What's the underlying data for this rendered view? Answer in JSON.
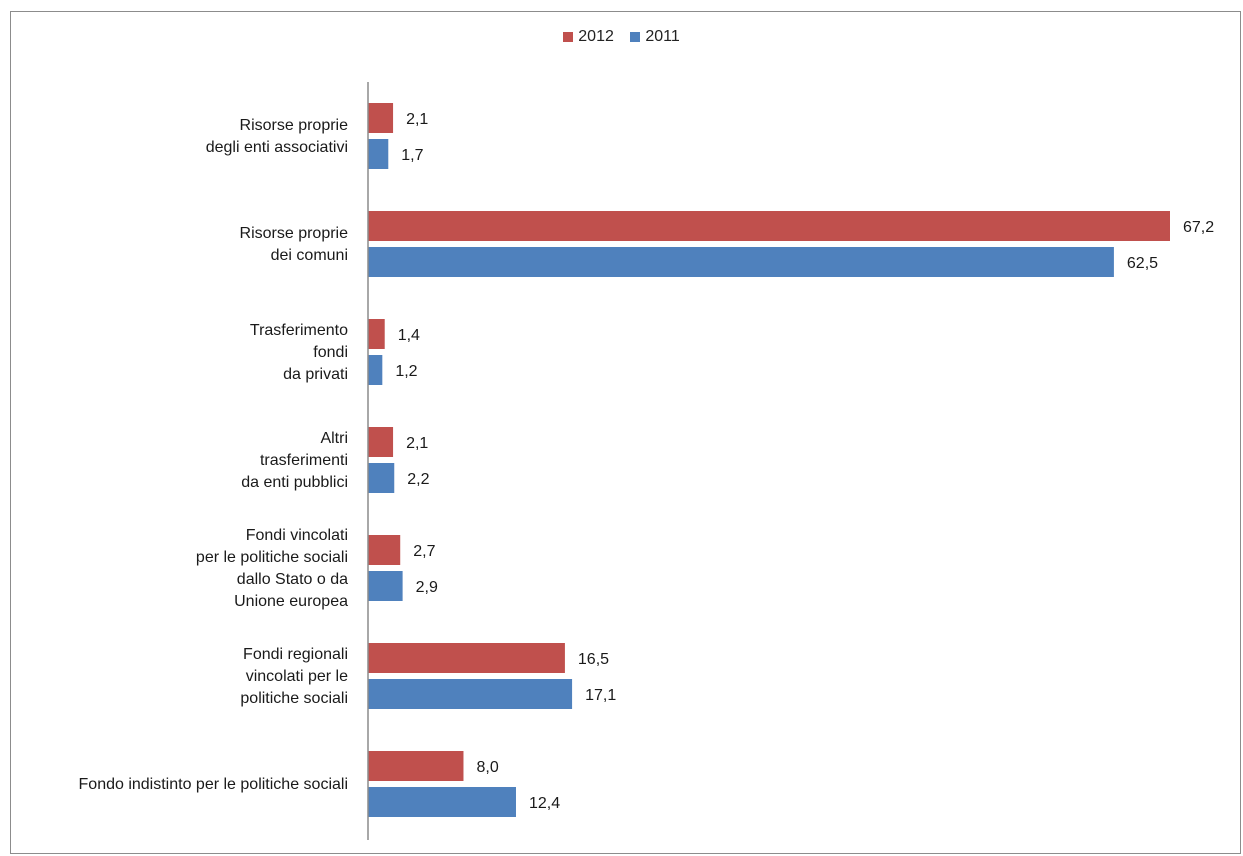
{
  "chart_data": {
    "type": "bar",
    "orientation": "horizontal",
    "categories": [
      [
        "Risorse proprie",
        "degli enti associativi"
      ],
      [
        "Risorse proprie",
        "dei comuni"
      ],
      [
        "Trasferimento",
        "fondi",
        "da privati"
      ],
      [
        "Altri",
        "trasferimenti",
        "da enti pubblici"
      ],
      [
        "Fondi vincolati",
        "per le politiche sociali",
        "dallo Stato o da",
        "Unione europea"
      ],
      [
        "Fondi regionali",
        "vincolati per le",
        "politiche sociali"
      ],
      [
        "Fondo indistinto per le politiche sociali"
      ]
    ],
    "series": [
      {
        "name": "2012",
        "color": "#c0504d",
        "values": [
          2.1,
          67.2,
          1.4,
          2.1,
          2.7,
          16.5,
          8.0
        ],
        "labels": [
          "2,1",
          "67,2",
          "1,4",
          "2,1",
          "2,7",
          "16,5",
          "8,0"
        ]
      },
      {
        "name": "2011",
        "color": "#4f81bd",
        "values": [
          1.7,
          62.5,
          1.2,
          2.2,
          2.9,
          17.1,
          12.4
        ],
        "labels": [
          "1,7",
          "62,5",
          "1,2",
          "2,2",
          "2,9",
          "17,1",
          "12,4"
        ]
      }
    ],
    "xlim": [
      0,
      70
    ],
    "legend_position": "top-center",
    "grid": false
  }
}
